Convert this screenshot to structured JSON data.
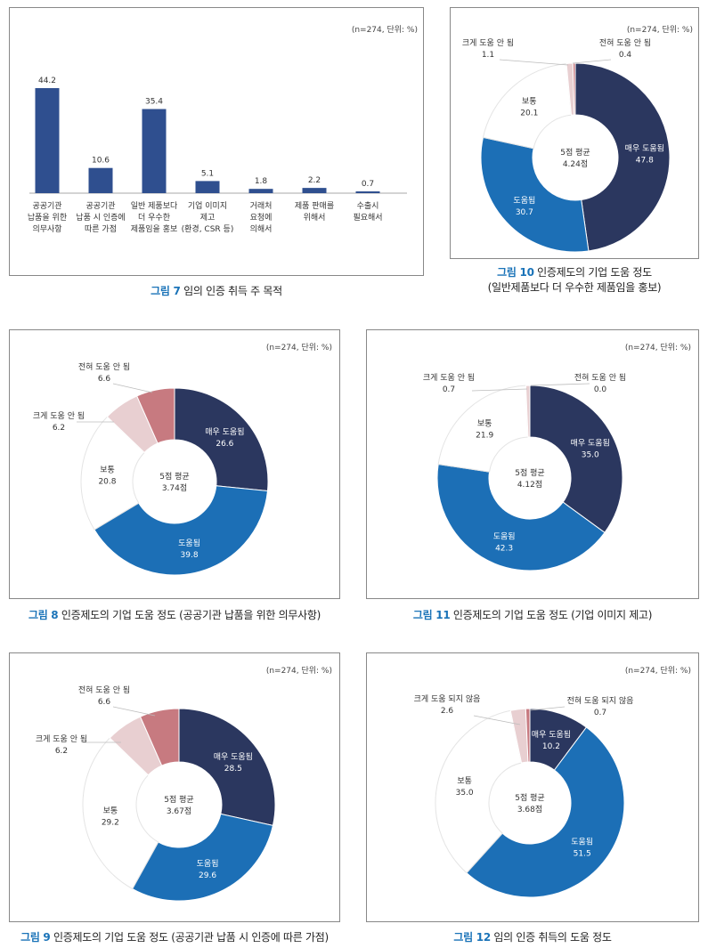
{
  "colors": {
    "very_helpful": "#2b375f",
    "helpful": "#1c6fb6",
    "neutral": "#ffffff",
    "not_much": "#e8cfd1",
    "not_at_all": "#c77a80",
    "bar": "#2f4f8f",
    "caption_fig": "#1a73b8"
  },
  "figures": {
    "fig7": {
      "note": "(n=274, 단위: %)",
      "caption_num": "그림 7",
      "caption_text": " 임의 인증 취득 주 목적"
    },
    "fig10": {
      "note": "(n=274, 단위: %)",
      "caption_num": "그림 10",
      "caption_text": " 인증제도의 기업 도움 정도",
      "caption_line2": "(일반제품보다 더 우수한 제품임을 홍보)"
    },
    "fig8": {
      "note": "(n=274, 단위: %)",
      "caption_num": "그림 8",
      "caption_text": " 인증제도의 기업 도움 정도 (공공기관 납품을 위한 의무사항)"
    },
    "fig11": {
      "note": "(n=274, 단위: %)",
      "caption_num": "그림 11",
      "caption_text": " 인증제도의 기업 도움 정도 (기업 이미지 제고)"
    },
    "fig9": {
      "note": "(n=274, 단위: %)",
      "caption_num": "그림 9",
      "caption_text": " 인증제도의 기업 도움 정도 (공공기관 납품 시 인증에 따른 가점)"
    },
    "fig12": {
      "note": "(n=274, 단위: %)",
      "caption_num": "그림 12",
      "caption_text": " 임의 인증 취득의 도움 정도"
    }
  },
  "chart_data": [
    {
      "id": "fig7",
      "type": "bar",
      "categories": [
        [
          "공공기관",
          "납품을 위한",
          "의무사항"
        ],
        [
          "공공기관",
          "납품 시 인증에",
          "따른 가점"
        ],
        [
          "일반 제품보다",
          "더 우수한",
          "제품임을 홍보"
        ],
        [
          "기업 이미지",
          "제고",
          "(환경, CSR 등)"
        ],
        [
          "거래처",
          "요청에",
          "의해서"
        ],
        [
          "제품 판매를",
          "위해서"
        ],
        [
          "수출시",
          "필요해서"
        ]
      ],
      "values": [
        44.2,
        10.6,
        35.4,
        5.1,
        1.8,
        2.2,
        0.7
      ],
      "value_labels": [
        "44.2",
        "10.6",
        "35.4",
        "5.1",
        "1.8",
        "2.2",
        "0.7"
      ],
      "unit": "%"
    },
    {
      "id": "fig10",
      "type": "pie",
      "center": [
        "5점 평균",
        "4.24점"
      ],
      "slices": [
        {
          "key": "very_helpful",
          "label": "매우 도움됨",
          "value": 47.8,
          "value_label": "47.8"
        },
        {
          "key": "helpful",
          "label": "도움됨",
          "value": 30.7,
          "value_label": "30.7"
        },
        {
          "key": "neutral",
          "label": "보통",
          "value": 20.1,
          "value_label": "20.1"
        },
        {
          "key": "not_much",
          "label": "크게 도움 안 됨",
          "value": 1.1,
          "value_label": "1.1"
        },
        {
          "key": "not_at_all",
          "label": "전혀 도움 안 됨",
          "value": 0.4,
          "value_label": "0.4"
        }
      ]
    },
    {
      "id": "fig8",
      "type": "pie",
      "center": [
        "5점 평균",
        "3.74점"
      ],
      "slices": [
        {
          "key": "very_helpful",
          "label": "매우 도움됨",
          "value": 26.6,
          "value_label": "26.6"
        },
        {
          "key": "helpful",
          "label": "도움됨",
          "value": 39.8,
          "value_label": "39.8"
        },
        {
          "key": "neutral",
          "label": "보통",
          "value": 20.8,
          "value_label": "20.8"
        },
        {
          "key": "not_much",
          "label": "크게 도움 안 됨",
          "value": 6.2,
          "value_label": "6.2"
        },
        {
          "key": "not_at_all",
          "label": "전혀 도움 안 됨",
          "value": 6.6,
          "value_label": "6.6"
        }
      ]
    },
    {
      "id": "fig11",
      "type": "pie",
      "center": [
        "5점 평균",
        "4.12점"
      ],
      "slices": [
        {
          "key": "very_helpful",
          "label": "매우 도움됨",
          "value": 35.0,
          "value_label": "35.0"
        },
        {
          "key": "helpful",
          "label": "도움됨",
          "value": 42.3,
          "value_label": "42.3"
        },
        {
          "key": "neutral",
          "label": "보통",
          "value": 21.9,
          "value_label": "21.9"
        },
        {
          "key": "not_much",
          "label": "크게 도움 안 됨",
          "value": 0.7,
          "value_label": "0.7"
        },
        {
          "key": "not_at_all",
          "label": "전혀 도움 안 됨",
          "value": 0.0,
          "value_label": "0.0"
        }
      ]
    },
    {
      "id": "fig9",
      "type": "pie",
      "center": [
        "5점 평균",
        "3.67점"
      ],
      "slices": [
        {
          "key": "very_helpful",
          "label": "매우 도움됨",
          "value": 28.5,
          "value_label": "28.5"
        },
        {
          "key": "helpful",
          "label": "도움됨",
          "value": 29.6,
          "value_label": "29.6"
        },
        {
          "key": "neutral",
          "label": "보통",
          "value": 29.2,
          "value_label": "29.2"
        },
        {
          "key": "not_much",
          "label": "크게 도움 안 됨",
          "value": 6.2,
          "value_label": "6.2"
        },
        {
          "key": "not_at_all",
          "label": "전혀 도움 안 됨",
          "value": 6.6,
          "value_label": "6.6"
        }
      ]
    },
    {
      "id": "fig12",
      "type": "pie",
      "center": [
        "5점 평균",
        "3.68점"
      ],
      "slices": [
        {
          "key": "very_helpful",
          "label": "매우 도움됨",
          "value": 10.2,
          "value_label": "10.2"
        },
        {
          "key": "helpful",
          "label": "도움됨",
          "value": 51.5,
          "value_label": "51.5"
        },
        {
          "key": "neutral",
          "label": "보통",
          "value": 35.0,
          "value_label": "35.0"
        },
        {
          "key": "not_much",
          "label": "크게 도움 되지 않음",
          "value": 2.6,
          "value_label": "2.6"
        },
        {
          "key": "not_at_all",
          "label": "전혀 도움 되지 않음",
          "value": 0.7,
          "value_label": "0.7"
        }
      ]
    }
  ]
}
